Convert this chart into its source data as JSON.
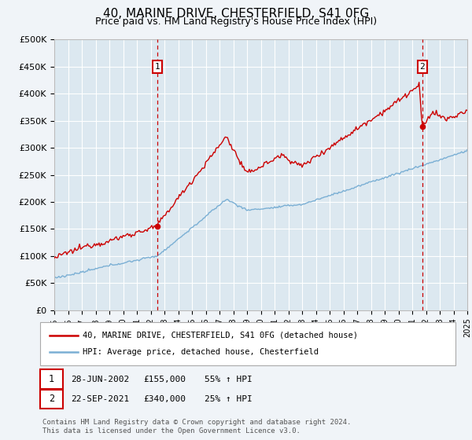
{
  "title": "40, MARINE DRIVE, CHESTERFIELD, S41 0FG",
  "subtitle": "Price paid vs. HM Land Registry's House Price Index (HPI)",
  "ylim": [
    0,
    500000
  ],
  "yticks": [
    0,
    50000,
    100000,
    150000,
    200000,
    250000,
    300000,
    350000,
    400000,
    450000,
    500000
  ],
  "ytick_labels": [
    "£0",
    "£50K",
    "£100K",
    "£150K",
    "£200K",
    "£250K",
    "£300K",
    "£350K",
    "£400K",
    "£450K",
    "£500K"
  ],
  "fig_bg": "#f0f4f8",
  "plot_bg": "#dce8f0",
  "grid_color": "#ffffff",
  "red_color": "#cc0000",
  "blue_color": "#7aafd4",
  "marker1_year": 2002.49,
  "marker2_year": 2021.73,
  "marker1_price": 155000,
  "marker2_price": 340000,
  "legend_label_red": "40, MARINE DRIVE, CHESTERFIELD, S41 0FG (detached house)",
  "legend_label_blue": "HPI: Average price, detached house, Chesterfield",
  "ann1": [
    "1",
    "28-JUN-2002",
    "£155,000",
    "55% ↑ HPI"
  ],
  "ann2": [
    "2",
    "22-SEP-2021",
    "£340,000",
    "25% ↑ HPI"
  ],
  "footer": "Contains HM Land Registry data © Crown copyright and database right 2024.\nThis data is licensed under the Open Government Licence v3.0.",
  "xmin": 1995,
  "xmax": 2025
}
